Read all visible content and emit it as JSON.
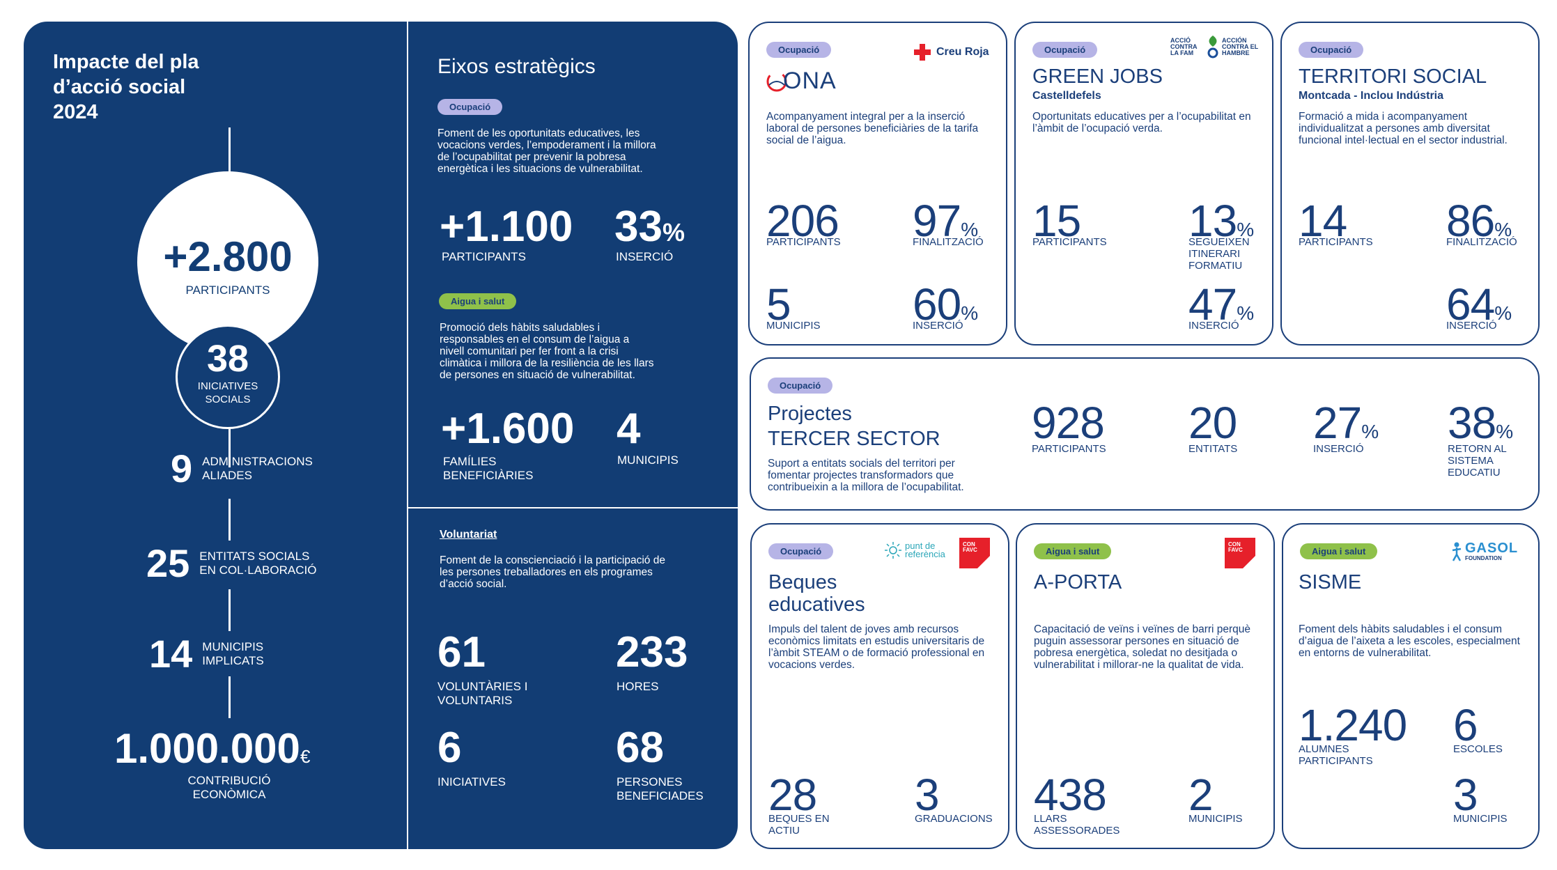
{
  "summary": {
    "title": "Impacte del pla d’acció social 2024",
    "participants": {
      "value": "+2.800",
      "label": "PARTICIPANTS"
    },
    "initiatives": {
      "value": "38",
      "label": "INICIATIVES SOCIALS"
    },
    "administrations": {
      "value": "9",
      "label": "ADMINISTRACIONS ALIADES"
    },
    "entities": {
      "value": "25",
      "label": "ENTITATS SOCIALS EN COL·LABORACIÓ"
    },
    "municipalities": {
      "value": "14",
      "label": "MUNICIPIS IMPLICATS"
    },
    "contribution": {
      "value": "1.000.000",
      "currency": "€",
      "label": "CONTRIBUCIÓ ECONÒMICA"
    }
  },
  "axes": {
    "title": "Eixos estratègics",
    "ocupacio": {
      "tag": "Ocupació",
      "description": "Foment de les oportunitats educatives, les vocacions verdes, l’empoderament i la millora de l’ocupabilitat per prevenir la pobresa energètica i les situacions de vulnerabilitat.",
      "participants": {
        "value": "+1.100",
        "label": "PARTICIPANTS"
      },
      "insercio": {
        "value": "33",
        "unit": "%",
        "label": "INSERCIÓ"
      }
    },
    "aigua": {
      "tag": "Aigua i salut",
      "description": "Promoció dels hàbits saludables i responsables en el consum de l’aigua a nivell comunitari per fer front a la crisi climàtica i millora de la resiliència de les llars de persones en situació de vulnerabilitat.",
      "families": {
        "value": "+1.600",
        "label": "FAMÍLIES BENEFICIÀRIES"
      },
      "municipis": {
        "value": "4",
        "label": "MUNICIPIS"
      }
    },
    "voluntariat": {
      "title": "Voluntariat",
      "description": "Foment de la conscienciació i la participació de les persones treballadores en els programes d’acció social.",
      "volunteers": {
        "value": "61",
        "label": "VOLUNTÀRIES I VOLUNTARIS"
      },
      "hours": {
        "value": "233",
        "label": "HORES"
      },
      "initiatives": {
        "value": "6",
        "label": "INICIATIVES"
      },
      "beneficiaries": {
        "value": "68",
        "label": "PERSONES BENEFICIADES"
      }
    }
  },
  "cards": {
    "ona": {
      "tag": "Ocupació",
      "partner": "Creu Roja",
      "title": "ONA",
      "description": "Acompanyament integral per a la inserció laboral de persones beneficiàries de la tarifa social de l’aigua.",
      "s1": {
        "value": "206",
        "label": "PARTICIPANTS"
      },
      "s2": {
        "value": "97",
        "unit": "%",
        "label": "FINALITZACIÓ"
      },
      "s3": {
        "value": "5",
        "label": "MUNICIPIS"
      },
      "s4": {
        "value": "60",
        "unit": "%",
        "label": "INSERCIÓ"
      }
    },
    "green": {
      "tag": "Ocupació",
      "partner_a": "ACCIÓ CONTRA LA FAM",
      "partner_b": "ACCIÓN CONTRA EL HAMBRE",
      "title": "GREEN JOBS",
      "subtitle": "Castelldefels",
      "description": "Oportunitats educatives per a l’ocupabilitat en l’àmbit de l’ocupació verda.",
      "s1": {
        "value": "15",
        "label": "PARTICIPANTS"
      },
      "s2": {
        "value": "13",
        "unit": "%",
        "label": "SEGUEIXEN ITINERARI FORMATIU"
      },
      "s4": {
        "value": "47",
        "unit": "%",
        "label": "INSERCIÓ"
      }
    },
    "territori": {
      "tag": "Ocupació",
      "title": "TERRITORI SOCIAL",
      "subtitle": "Montcada - Inclou Indústria",
      "description": "Formació a mida i acompanyament individualitzat a persones amb diversitat funcional intel·lectual en el sector industrial.",
      "s1": {
        "value": "14",
        "label": "PARTICIPANTS"
      },
      "s2": {
        "value": "86",
        "unit": "%",
        "label": "FINALITZACIÓ"
      },
      "s4": {
        "value": "64",
        "unit": "%",
        "label": "INSERCIÓ"
      }
    },
    "tercer": {
      "tag": "Ocupació",
      "title_line1": "Projectes",
      "title_line2": "TERCER SECTOR",
      "description": "Suport a entitats socials del territori per fomentar projectes transformadors que contribueixin a la millora de l’ocupabilitat.",
      "s1": {
        "value": "928",
        "label": "PARTICIPANTS"
      },
      "s2": {
        "value": "20",
        "label": "ENTITATS"
      },
      "s3": {
        "value": "27",
        "unit": "%",
        "label": "INSERCIÓ"
      },
      "s4": {
        "value": "38",
        "unit": "%",
        "label": "RETORN AL SISTEMA EDUCATIU"
      }
    },
    "beques": {
      "tag": "Ocupació",
      "partner": "punt de referència",
      "partner_b": "CON FAVC",
      "title_line1": "Beques",
      "title_line2": "educatives",
      "description": "Impuls del talent de joves amb recursos econòmics limitats en estudis universitaris de l’àmbit STEAM o de formació professional en vocacions verdes.",
      "s1": {
        "value": "28",
        "label": "BEQUES EN ACTIU"
      },
      "s2": {
        "value": "3",
        "label": "GRADUACIONS"
      }
    },
    "aporta": {
      "tag": "Aigua i salut",
      "partner": "CON FAVC",
      "title": "A-PORTA",
      "description": "Capacitació de veïns i veïnes de barri perquè puguin assessorar persones en situació de pobresa energètica, soledat no desitjada o vulnerabilitat i millorar-ne la qualitat de vida.",
      "s1": {
        "value": "438",
        "label": "LLARS ASSESSORADES"
      },
      "s2": {
        "value": "2",
        "label": "MUNICIPIS"
      }
    },
    "sisme": {
      "tag": "Aigua i salut",
      "partner": "GASOL",
      "partner_sub": "FOUNDATION",
      "title": "SISME",
      "description": "Foment dels hàbits saludables i el consum d’aigua de l’aixeta a les escoles, especialment en entorns de vulnerabilitat.",
      "s1": {
        "value": "1.240",
        "label": "ALUMNES PARTICIPANTS"
      },
      "s2": {
        "value": "6",
        "label": "ESCOLES"
      },
      "s3": {
        "value": "3",
        "label": "MUNICIPIS"
      }
    }
  }
}
